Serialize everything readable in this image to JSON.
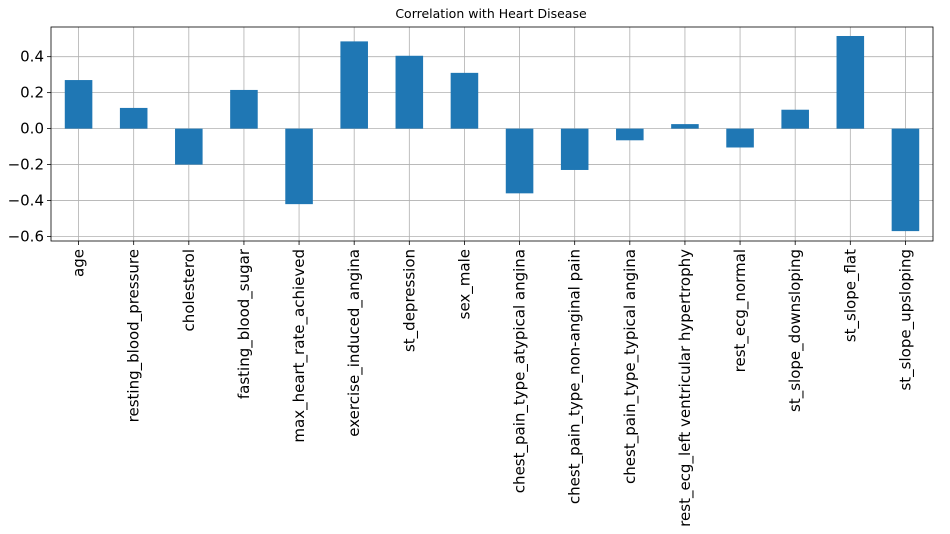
{
  "chart_data": {
    "type": "bar",
    "title": "Correlation with Heart Disease",
    "xlabel": "",
    "ylabel": "",
    "categories": [
      "age",
      "resting_blood_pressure",
      "cholesterol",
      "fasting_blood_sugar",
      "max_heart_rate_achieved",
      "exercise_induced_angina",
      "st_depression",
      "sex_male",
      "chest_pain_type_atypical angina",
      "chest_pain_type_non-anginal pain",
      "chest_pain_type_typical angina",
      "rest_ecg_left ventricular hypertrophy",
      "rest_ecg_normal",
      "st_slope_downsloping",
      "st_slope_flat",
      "st_slope_upsloping"
    ],
    "values": [
      0.27,
      0.115,
      -0.2,
      0.215,
      -0.42,
      0.485,
      0.405,
      0.31,
      -0.36,
      -0.23,
      -0.065,
      0.025,
      -0.105,
      0.105,
      0.515,
      -0.57
    ],
    "ylim": [
      -0.625,
      0.565
    ],
    "yticks": [
      -0.6,
      -0.4,
      -0.2,
      0.0,
      0.2,
      0.4
    ],
    "ytick_labels": [
      "−0.6",
      "−0.4",
      "−0.2",
      "0.0",
      "0.2",
      "0.4"
    ],
    "grid": true,
    "bar_color": "#1f77b4"
  }
}
